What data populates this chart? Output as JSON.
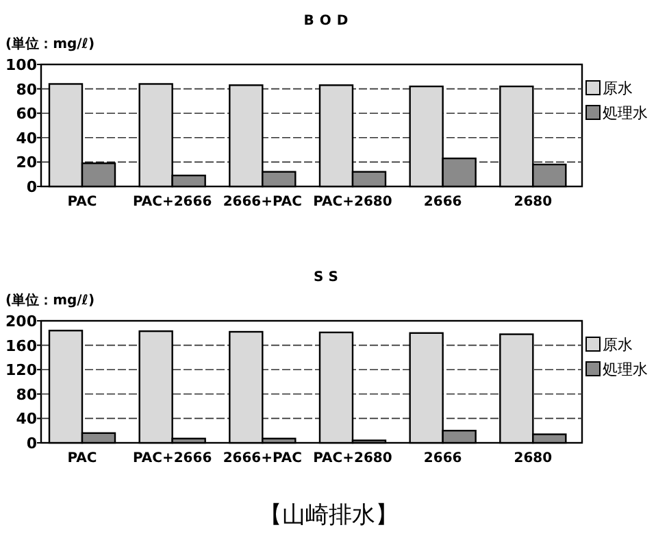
{
  "chart_data": [
    {
      "type": "bar",
      "title": "BOD",
      "ylabel": "(単位：mg/ℓ)",
      "categories": [
        "PAC",
        "PAC+2666",
        "2666+PAC",
        "PAC+2680",
        "2666",
        "2680"
      ],
      "series": [
        {
          "name": "原水",
          "color": "#d9d9d9",
          "values": [
            84,
            84,
            83,
            83,
            82,
            82
          ]
        },
        {
          "name": "処理水",
          "color": "#8a8a8a",
          "values": [
            19,
            9,
            12,
            12,
            23,
            18
          ]
        }
      ],
      "ylim": [
        0,
        100
      ],
      "yticks": [
        0,
        20,
        40,
        60,
        80,
        100
      ],
      "grid": "y",
      "legend": "right"
    },
    {
      "type": "bar",
      "title": "SS",
      "ylabel": "(単位：mg/ℓ)",
      "categories": [
        "PAC",
        "PAC+2666",
        "2666+PAC",
        "PAC+2680",
        "2666",
        "2680"
      ],
      "series": [
        {
          "name": "原水",
          "color": "#d9d9d9",
          "values": [
            184,
            183,
            182,
            181,
            180,
            178
          ]
        },
        {
          "name": "処理水",
          "color": "#8a8a8a",
          "values": [
            16,
            7,
            7,
            4,
            20,
            14
          ]
        }
      ],
      "ylim": [
        0,
        200
      ],
      "yticks": [
        0,
        40,
        80,
        120,
        160,
        200
      ],
      "grid": "y",
      "legend": "right",
      "annotations": [
        "【山崎排水】"
      ]
    }
  ]
}
